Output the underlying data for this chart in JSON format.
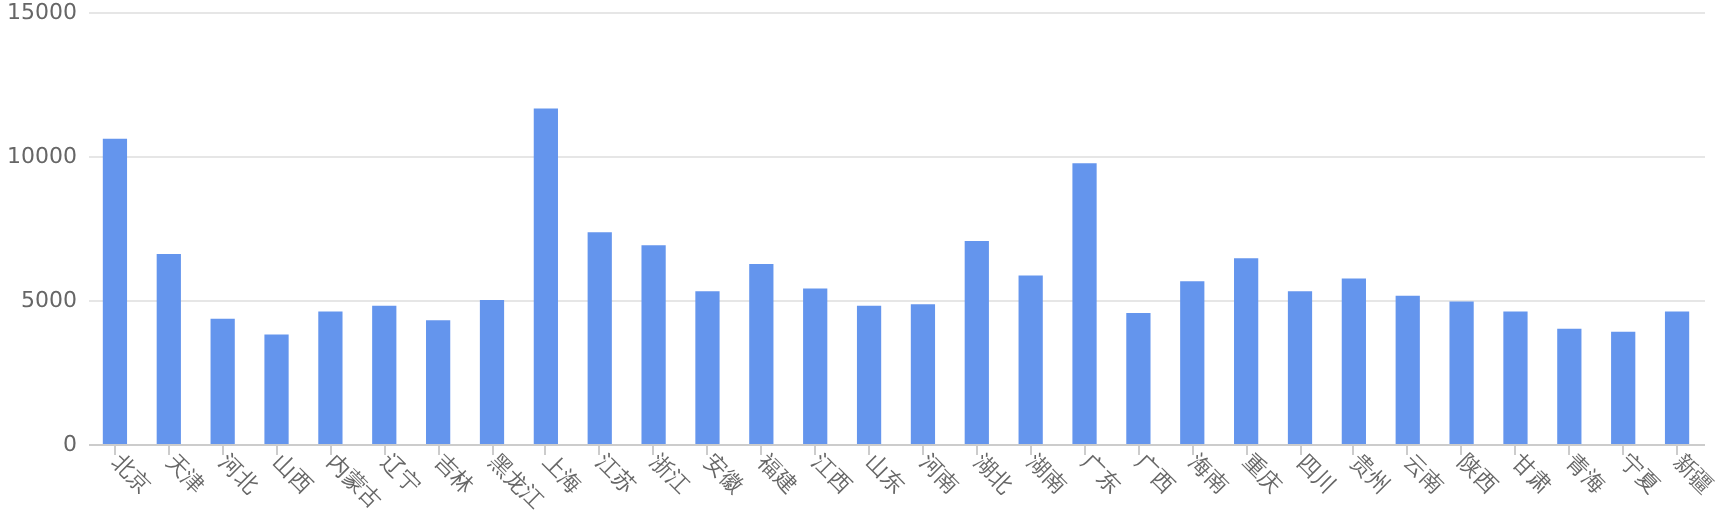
{
  "chart_data": {
    "type": "bar",
    "categories": [
      "北京",
      "天津",
      "河北",
      "山西",
      "内蒙古",
      "辽宁",
      "吉林",
      "黑龙江",
      "上海",
      "江苏",
      "浙江",
      "安徽",
      "福建",
      "江西",
      "山东",
      "河南",
      "湖北",
      "湖南",
      "广东",
      "广西",
      "海南",
      "重庆",
      "四川",
      "贵州",
      "云南",
      "陕西",
      "甘肃",
      "青海",
      "宁夏",
      "新疆"
    ],
    "values": [
      10600,
      6600,
      4350,
      3800,
      4600,
      4800,
      4300,
      5000,
      11650,
      7350,
      6900,
      5300,
      6250,
      5400,
      4800,
      4850,
      7050,
      5850,
      9750,
      4550,
      5650,
      6450,
      5300,
      5750,
      5150,
      4950,
      4600,
      4000,
      3900,
      4600
    ],
    "color": "#6495ed",
    "ylim": [
      0,
      15000
    ],
    "yticks": [
      0,
      5000,
      10000,
      15000
    ],
    "grid": "y"
  }
}
